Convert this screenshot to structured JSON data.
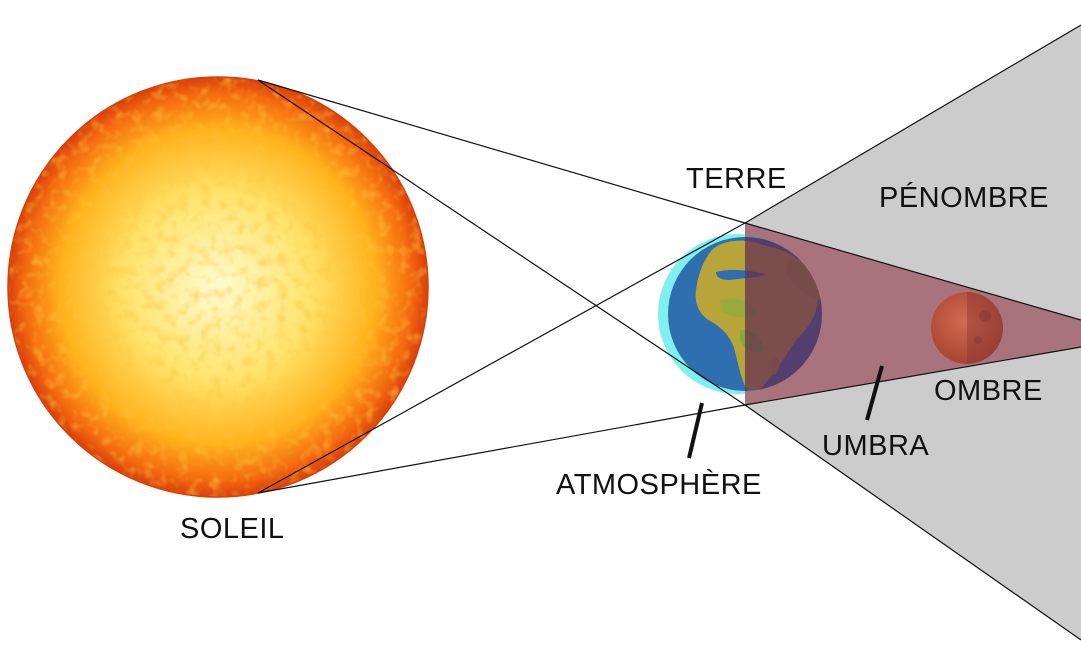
{
  "labels": {
    "sun": "SOLEIL",
    "earth": "TERRE",
    "penumbra": "PÉNOMBRE",
    "umbra": "UMBRA",
    "shadow": "OMBRE",
    "atmosphere": "ATMOSPHÈRE"
  },
  "colors": {
    "sun_core": "#fff59a",
    "sun_mid": "#ffc21a",
    "sun_edge": "#e84a0a",
    "penumbra_fill": "#cccccc",
    "umbra_fill": "#9b4b58",
    "atmosphere": "#7ff0f0",
    "ocean": "#2f6fb0",
    "land": "#b8a53a",
    "moon": "#c8553f"
  }
}
